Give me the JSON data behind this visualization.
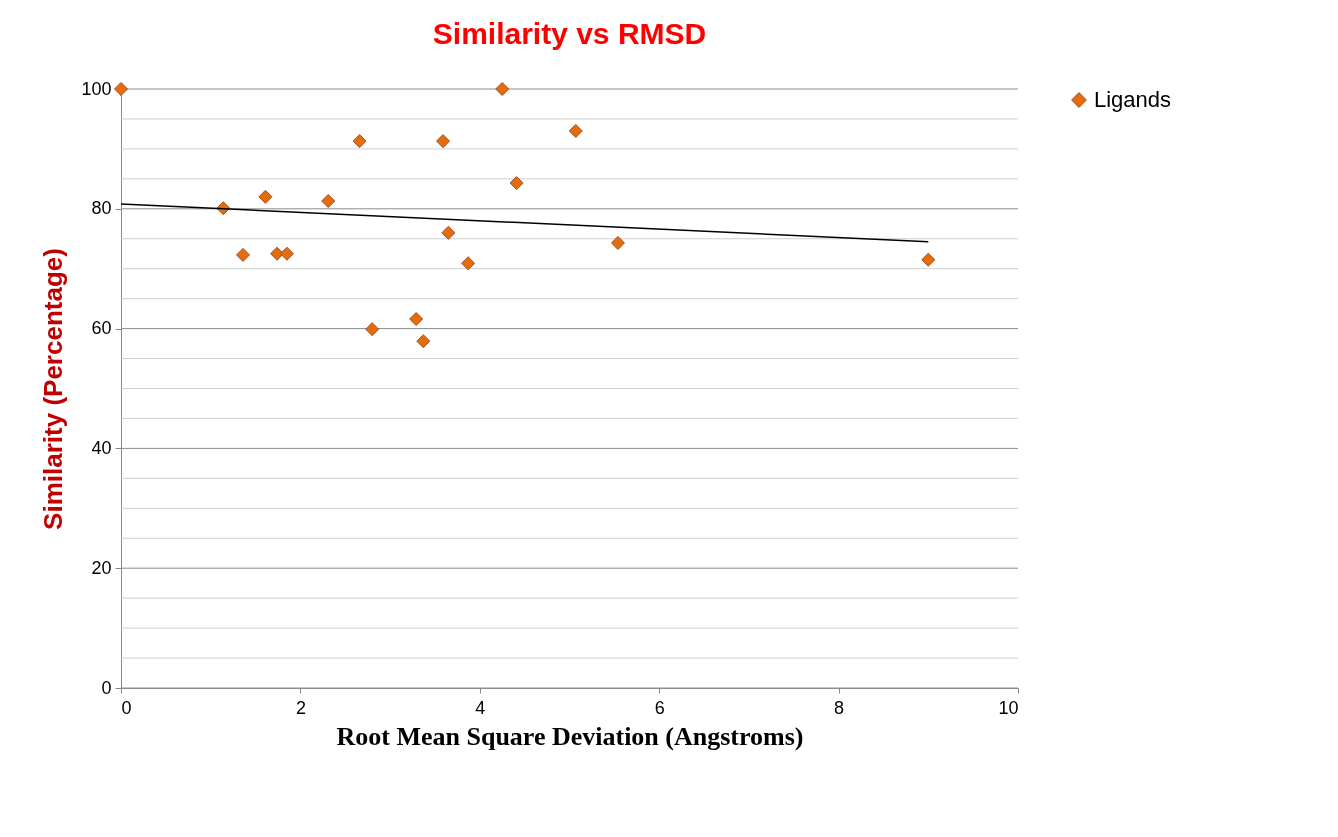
{
  "chart_data": {
    "type": "scatter",
    "title": "Similarity vs RMSD",
    "xlabel": "Root Mean Square Deviation (Angstroms)",
    "ylabel": "Similarity  (Percentage)",
    "xlim": [
      0,
      10
    ],
    "xticks": [
      0,
      2,
      4,
      6,
      8,
      10
    ],
    "ylim": [
      0,
      100
    ],
    "yticks": [
      0,
      {
        "value": 5,
        "label": null
      },
      {
        "value": 10,
        "label": null
      },
      {
        "value": 15,
        "label": null
      },
      20,
      {
        "value": 25,
        "label": null
      },
      {
        "value": 30,
        "label": null
      },
      {
        "value": 35,
        "label": null
      },
      40,
      {
        "value": 45,
        "label": null
      },
      {
        "value": 50,
        "label": null
      },
      {
        "value": 55,
        "label": null
      },
      60,
      {
        "value": 65,
        "label": null
      },
      {
        "value": 70,
        "label": null
      },
      {
        "value": 75,
        "label": null
      },
      80,
      {
        "value": 85,
        "label": null
      },
      {
        "value": 90,
        "label": null
      },
      {
        "value": 95,
        "label": null
      },
      100
    ],
    "grid": "y",
    "legend": "right",
    "series": [
      {
        "name": "Ligands",
        "marker": "diamond",
        "color": "#e46c0a",
        "x": [
          0,
          1.14,
          1.36,
          1.61,
          1.74,
          1.85,
          2.31,
          2.66,
          2.8,
          3.29,
          3.37,
          3.59,
          3.65,
          3.87,
          4.25,
          4.41,
          5.07,
          5.54,
          9.0
        ],
        "values": [
          100,
          80.1,
          72.3,
          82,
          72.5,
          72.5,
          81.3,
          91.3,
          59.9,
          61.6,
          57.9,
          91.3,
          76,
          70.9,
          100,
          84.3,
          93,
          74.3,
          71.5
        ]
      },
      {
        "type": "line",
        "color": "#000000",
        "x": [
          0,
          9.0
        ],
        "values": [
          80.8,
          74.5
        ]
      }
    ]
  }
}
